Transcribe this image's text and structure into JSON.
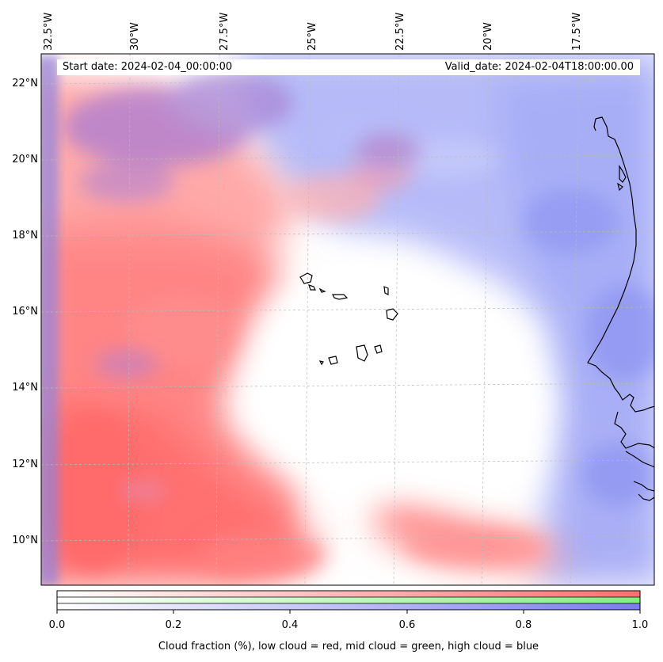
{
  "map": {
    "start_date": "Start date: 2024-02-04_00:00:00",
    "valid_date": "Valid_date: 2024-02-04T18:00:00.00",
    "longitude_labels": [
      "32.5°W",
      "30°W",
      "27.5°W",
      "25°W",
      "22.5°W",
      "20°W",
      "17.5°W"
    ],
    "latitude_labels": [
      "22°N",
      "20°N",
      "18°N",
      "16°N",
      "14°N",
      "12°N",
      "10°N"
    ],
    "extent": {
      "lon_min": -32.6,
      "lon_max": -15.9,
      "lat_min": 8.9,
      "lat_max": 22.8
    }
  },
  "colorbar": {
    "ticks": [
      "0.0",
      "0.2",
      "0.4",
      "0.6",
      "0.8",
      "1.0"
    ],
    "label": "Cloud fraction (%), low cloud = red, mid cloud = green, high cloud = blue",
    "colors": {
      "low": "#ff6f6f",
      "mid": "#7ff07f",
      "high": "#7b7bf0"
    }
  }
}
